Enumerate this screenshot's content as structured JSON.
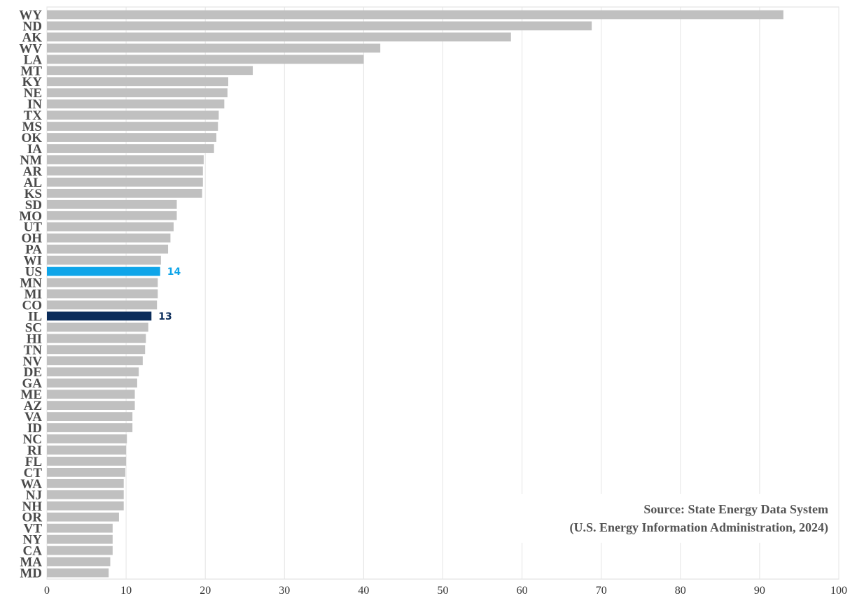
{
  "chart_data": {
    "type": "bar",
    "orientation": "horizontal",
    "categories": [
      "WY",
      "ND",
      "AK",
      "WV",
      "LA",
      "MT",
      "KY",
      "NE",
      "IN",
      "TX",
      "MS",
      "OK",
      "IA",
      "NM",
      "AR",
      "AL",
      "KS",
      "SD",
      "MO",
      "UT",
      "OH",
      "PA",
      "WI",
      "US",
      "MN",
      "MI",
      "CO",
      "IL",
      "SC",
      "HI",
      "TN",
      "NV",
      "DE",
      "GA",
      "ME",
      "AZ",
      "VA",
      "ID",
      "NC",
      "RI",
      "FL",
      "CT",
      "WA",
      "NJ",
      "NH",
      "OR",
      "VT",
      "NY",
      "CA",
      "MA",
      "MD"
    ],
    "values": [
      93,
      68.8,
      58.6,
      42.1,
      40,
      26,
      22.9,
      22.8,
      22.4,
      21.7,
      21.6,
      21.4,
      21.1,
      19.8,
      19.7,
      19.7,
      19.6,
      16.4,
      16.4,
      16,
      15.6,
      15.3,
      14.4,
      14.3,
      14,
      14,
      13.9,
      13.2,
      12.8,
      12.5,
      12.4,
      12.1,
      11.6,
      11.4,
      11.1,
      11.1,
      10.8,
      10.8,
      10.1,
      10,
      10,
      9.9,
      9.7,
      9.7,
      9.7,
      9.1,
      8.3,
      8.3,
      8.3,
      8,
      7.8
    ],
    "highlights": [
      {
        "category": "US",
        "label": "14",
        "color": "#0ea5e9"
      },
      {
        "category": "IL",
        "label": "13",
        "color": "#0b2d5b"
      }
    ],
    "bar_color": "#c0c0c0",
    "xlim": [
      0,
      100
    ],
    "xticks": [
      "0",
      "10",
      "20",
      "30",
      "40",
      "50",
      "60",
      "70",
      "80",
      "90",
      "100"
    ],
    "grid": true,
    "title": "",
    "xlabel": "",
    "ylabel": "",
    "annotation": {
      "line1": "Source: State Energy Data System",
      "line2": "(U.S. Energy Information Administration, 2024)"
    }
  }
}
